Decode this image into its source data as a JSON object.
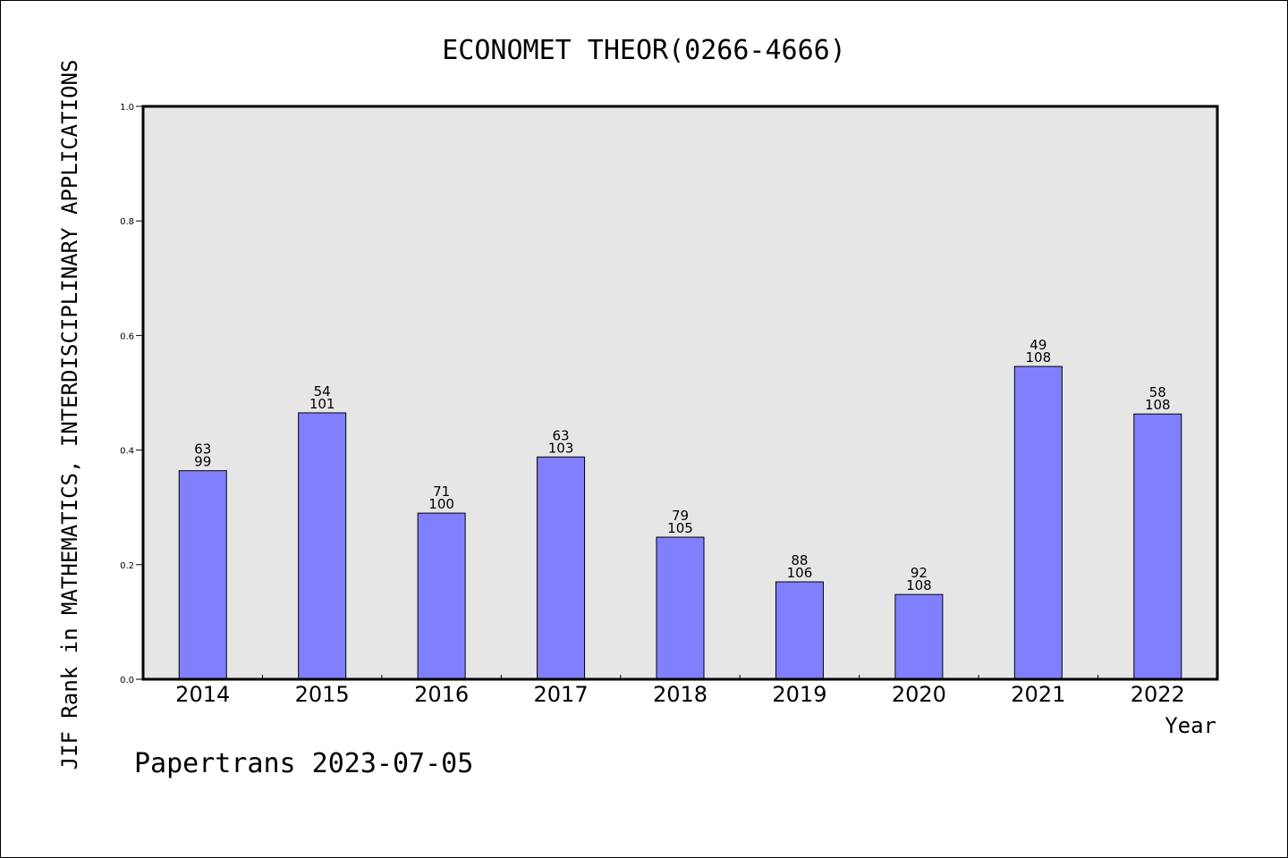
{
  "chart_data": {
    "type": "bar",
    "title": "ECONOMET THEOR(0266-4666)",
    "xlabel": "Year",
    "ylabel": "JIF Rank in MATHEMATICS, INTERDISCIPLINARY APPLICATIONS",
    "categories": [
      "2014",
      "2015",
      "2016",
      "2017",
      "2018",
      "2019",
      "2020",
      "2021",
      "2022"
    ],
    "values": [
      0.364,
      0.465,
      0.29,
      0.388,
      0.248,
      0.17,
      0.148,
      0.546,
      0.463
    ],
    "ranks": [
      "63",
      "54",
      "71",
      "63",
      "79",
      "88",
      "92",
      "49",
      "58"
    ],
    "totals": [
      "99",
      "101",
      "100",
      "103",
      "105",
      "106",
      "108",
      "108",
      "108"
    ],
    "ylim": [
      0,
      1.0
    ],
    "yticks": [
      "0.0",
      "0.2",
      "0.4",
      "0.6",
      "0.8",
      "1.0"
    ],
    "bar_color": "#8080ff",
    "plot_background": "#e6e6e6",
    "grid": false
  },
  "footer": "Papertrans 2023-07-05"
}
